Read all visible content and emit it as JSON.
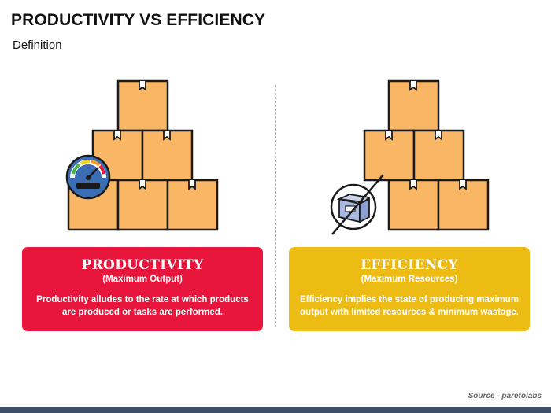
{
  "slide": {
    "title": "PRODUCTIVITY VS EFFICIENCY",
    "subtitle": "Definition",
    "source": "Source - paretolabs"
  },
  "productivity": {
    "heading": "PRODUCTIVITY",
    "subheading": "(Maximum Output)",
    "description": "Productivity alludes to the rate at which products are produced or tasks are performed.",
    "color": "#e8163c",
    "icon": "speedometer-icon"
  },
  "efficiency": {
    "heading": "EFFICIENCY",
    "subheading": "(Maximum Resources)",
    "description": "Efficiency implies the state of producing maximum output with limited resources & minimum wastage.",
    "color": "#edbc14",
    "icon": "crossed-out-box-icon"
  },
  "colors": {
    "box_fill": "#f9b765",
    "box_outline": "#1a1a1a",
    "bottom_bar": "#3d4f6b"
  }
}
